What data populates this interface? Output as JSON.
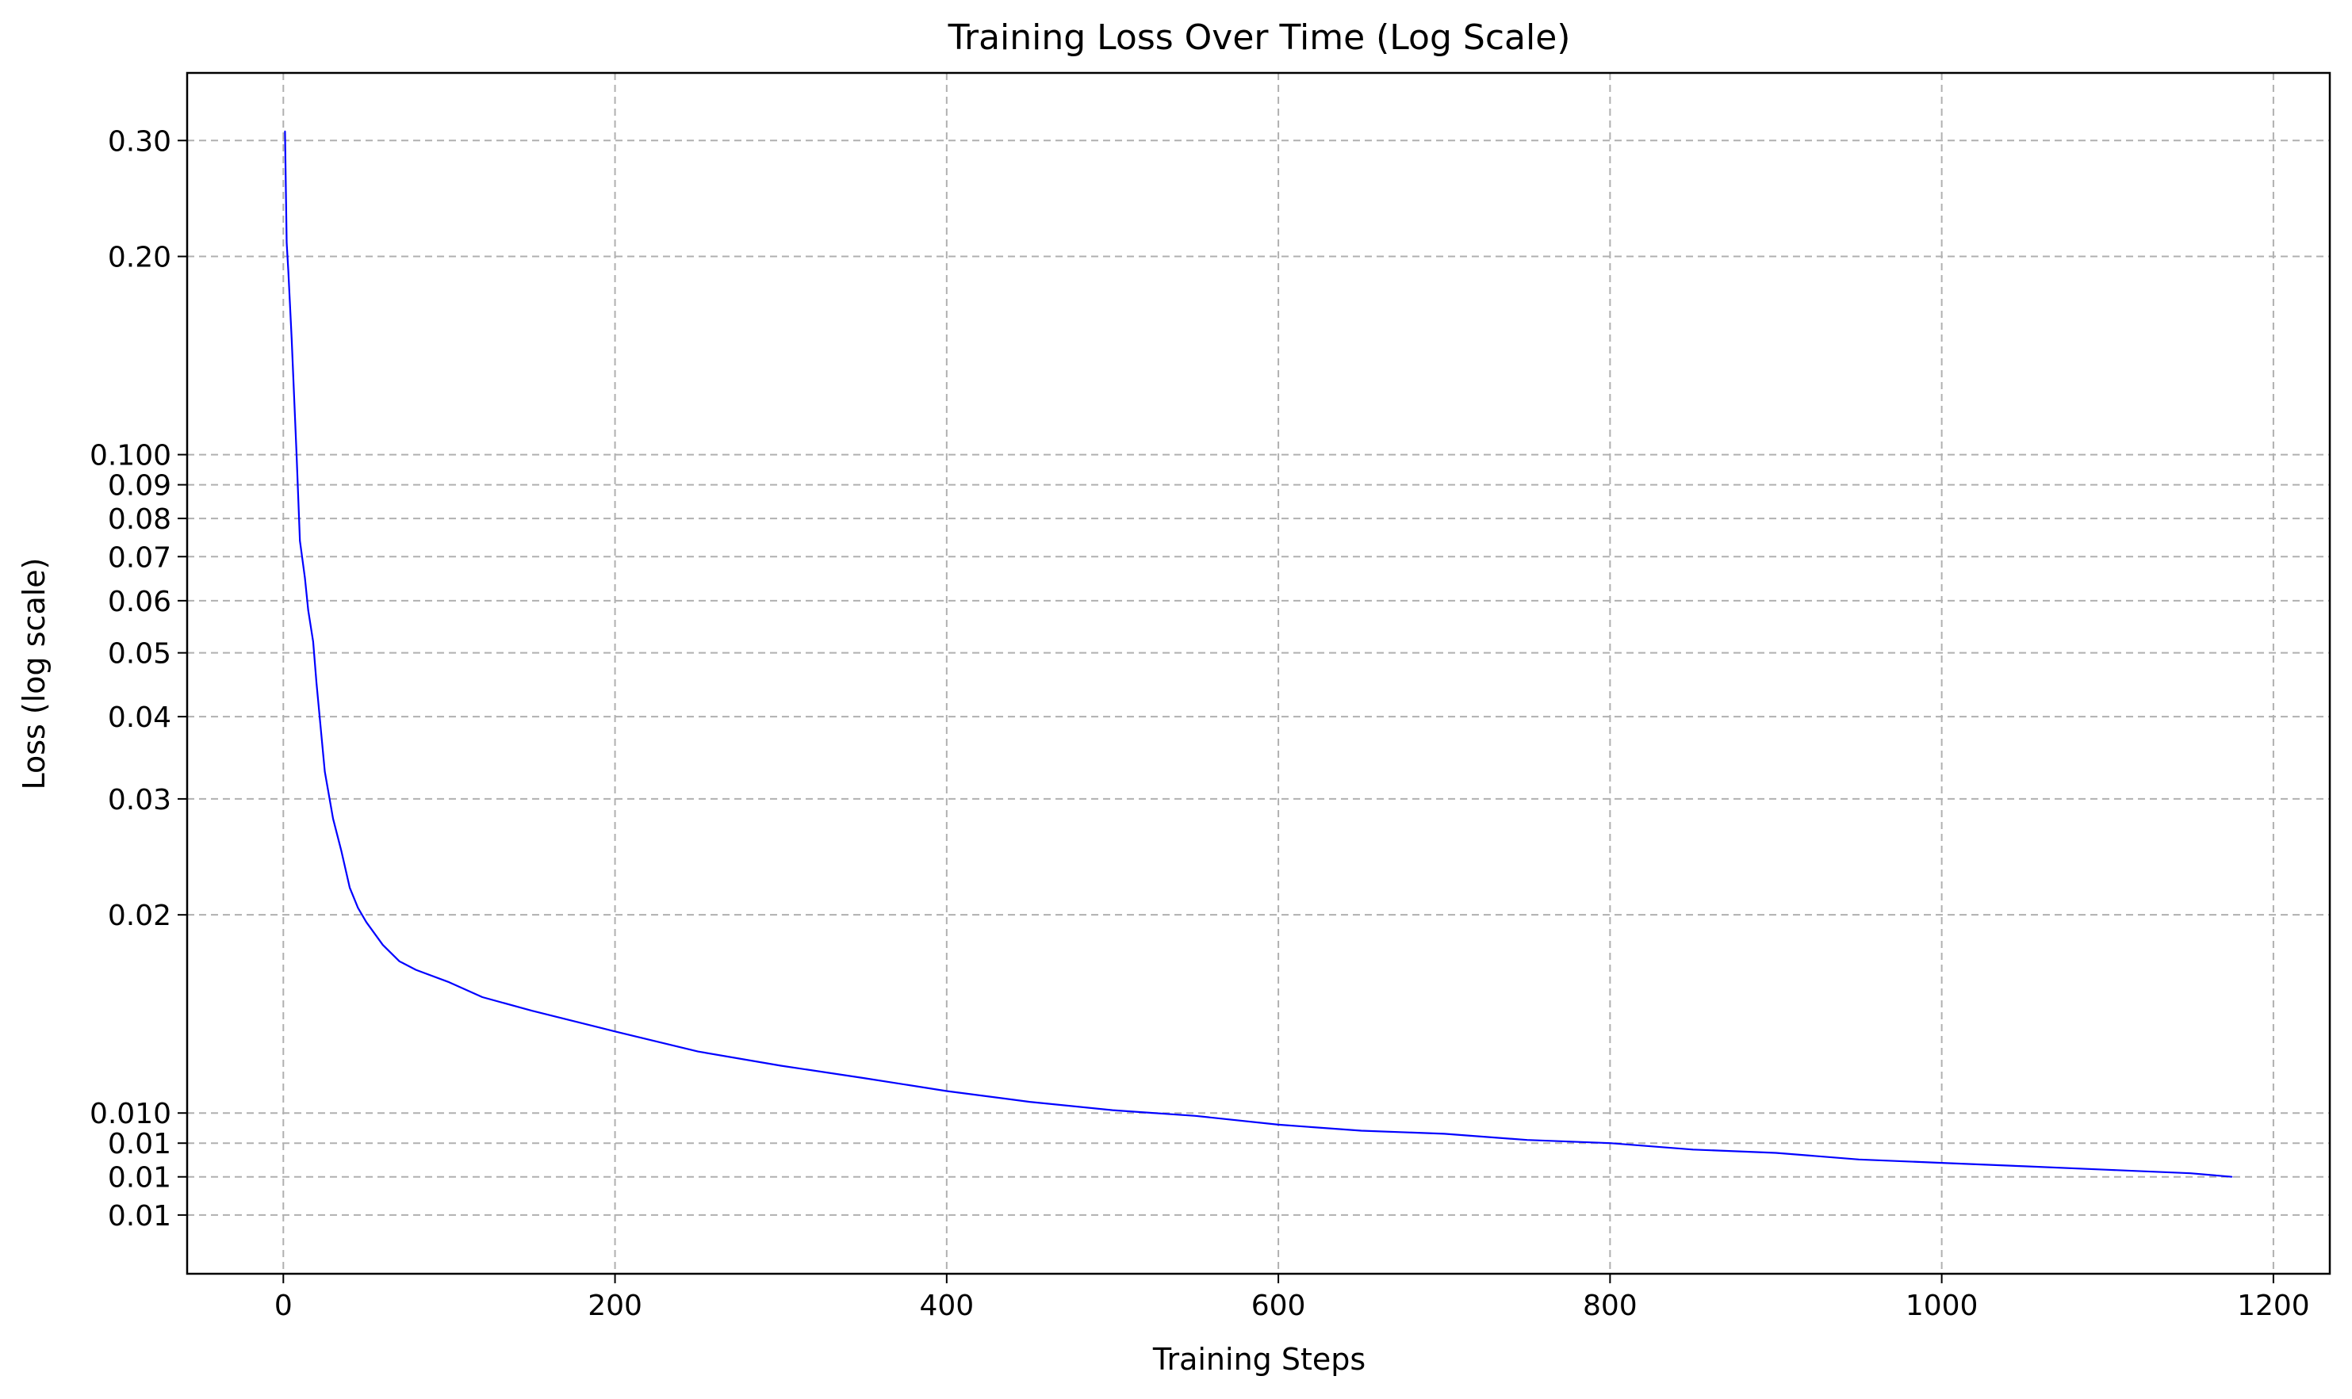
{
  "chart_data": {
    "type": "line",
    "title": "Training Loss Over Time (Log Scale)",
    "xlabel": "Training Steps",
    "ylabel": "Loss (log scale)",
    "xlim": [
      -58,
      1234
    ],
    "ylim": [
      0.0057,
      0.38
    ],
    "y_scale": "log",
    "grid": true,
    "grid_style": "dashed",
    "x_ticks": [
      {
        "value": 0,
        "label": "0"
      },
      {
        "value": 200,
        "label": "200"
      },
      {
        "value": 400,
        "label": "400"
      },
      {
        "value": 600,
        "label": "600"
      },
      {
        "value": 800,
        "label": "800"
      },
      {
        "value": 1000,
        "label": "1000"
      },
      {
        "value": 1200,
        "label": "1200"
      }
    ],
    "y_ticks": [
      {
        "value": 0.3,
        "label": "0.30"
      },
      {
        "value": 0.2,
        "label": "0.20"
      },
      {
        "value": 0.1,
        "label": "0.100"
      },
      {
        "value": 0.09,
        "label": "0.09"
      },
      {
        "value": 0.08,
        "label": "0.08"
      },
      {
        "value": 0.07,
        "label": "0.07"
      },
      {
        "value": 0.06,
        "label": "0.06"
      },
      {
        "value": 0.05,
        "label": "0.05"
      },
      {
        "value": 0.04,
        "label": "0.04"
      },
      {
        "value": 0.03,
        "label": "0.03"
      },
      {
        "value": 0.02,
        "label": "0.02"
      },
      {
        "value": 0.01,
        "label": "0.010"
      },
      {
        "value": 0.009,
        "label": "0.01"
      },
      {
        "value": 0.008,
        "label": "0.01"
      },
      {
        "value": 0.007,
        "label": "0.01"
      }
    ],
    "series": [
      {
        "color": "#0000ff",
        "x": [
          1,
          2,
          3,
          5,
          8,
          10,
          13,
          15,
          18,
          20,
          25,
          30,
          35,
          40,
          45,
          50,
          60,
          70,
          80,
          100,
          120,
          150,
          200,
          250,
          300,
          350,
          400,
          450,
          500,
          550,
          600,
          650,
          700,
          750,
          800,
          850,
          900,
          950,
          1000,
          1050,
          1100,
          1150,
          1175
        ],
        "y": [
          0.31,
          0.21,
          0.19,
          0.15,
          0.1,
          0.074,
          0.065,
          0.058,
          0.052,
          0.045,
          0.033,
          0.028,
          0.025,
          0.022,
          0.0205,
          0.0195,
          0.018,
          0.017,
          0.0165,
          0.0158,
          0.015,
          0.0143,
          0.0133,
          0.0124,
          0.0118,
          0.0113,
          0.0108,
          0.0104,
          0.0101,
          0.0099,
          0.0096,
          0.0094,
          0.0093,
          0.0091,
          0.009,
          0.0088,
          0.0087,
          0.0085,
          0.0084,
          0.0083,
          0.0082,
          0.0081,
          0.008
        ]
      }
    ]
  }
}
